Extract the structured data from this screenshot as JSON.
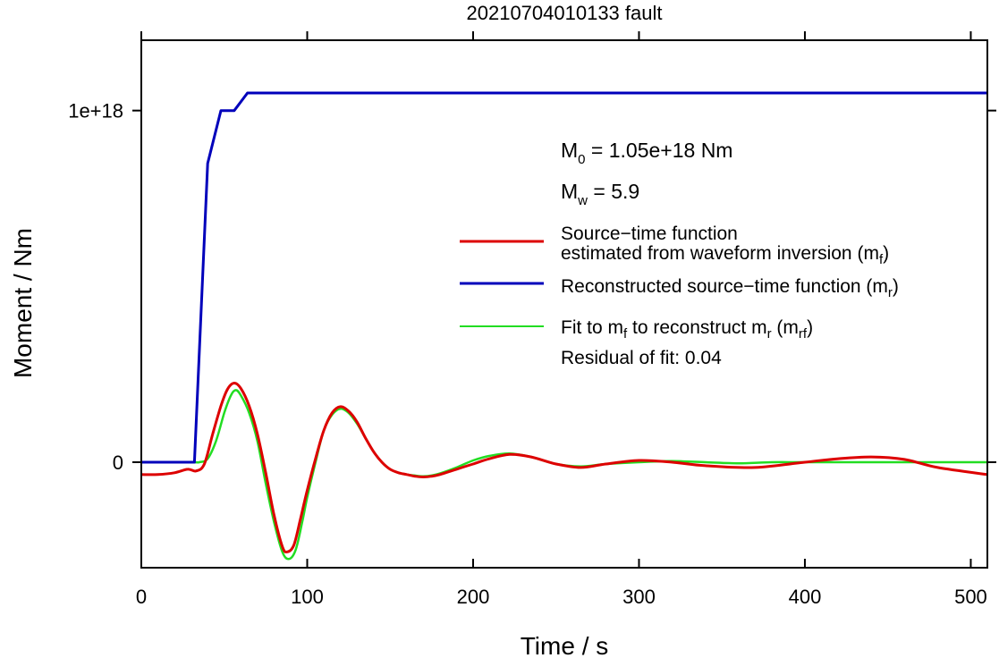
{
  "chart_data": {
    "type": "line",
    "title": "20210704010133 fault",
    "xlabel": "Time / s",
    "ylabel": "Moment / Nm",
    "xlim": [
      0,
      510
    ],
    "ylim": [
      -3e+17,
      1.2e+18
    ],
    "x_ticks": [
      0,
      100,
      200,
      300,
      400,
      500
    ],
    "x_tick_labels": [
      "0",
      "100",
      "200",
      "300",
      "400",
      "500"
    ],
    "y_ticks": [
      0,
      1e+18
    ],
    "y_tick_labels": [
      "0",
      "1e+18"
    ],
    "grid": false,
    "legend_position": "right",
    "annotations": {
      "m0": {
        "base": "M",
        "sub": "0",
        "text": " = 1.05e+18 Nm"
      },
      "mw": {
        "base": "M",
        "sub": "w",
        "text": " = 5.9"
      },
      "residual": "Residual of fit: 0.04"
    },
    "legend": [
      {
        "color": "#dd0000",
        "line1": "Source−time function",
        "line2": "estimated from waveform inversion (m",
        "line2_sub": "f",
        "line2_end": ")"
      },
      {
        "color": "#0000bb",
        "line1": "Reconstructed source−time function (m",
        "line1_sub": "r",
        "line1_end": ")"
      },
      {
        "color": "#22dd22",
        "line1a": "Fit to m",
        "line1a_sub": "f",
        "line1b": " to reconstruct m",
        "line1b_sub": "r",
        "line1c": " (m",
        "line1c_sub": "rf",
        "line1_end": ")"
      }
    ],
    "series": [
      {
        "key": "mr",
        "color": "#0000bb",
        "x": [
          0,
          32,
          40,
          48,
          56,
          64,
          70,
          100,
          200,
          300,
          400,
          510
        ],
        "y": [
          0,
          0,
          8.5e+17,
          1e+18,
          1e+18,
          1.05e+18,
          1.05e+18,
          1.05e+18,
          1.05e+18,
          1.05e+18,
          1.05e+18,
          1.05e+18
        ]
      },
      {
        "key": "mf",
        "color": "#dd0000",
        "x": [
          0,
          10,
          20,
          28,
          33,
          38,
          43,
          48,
          52,
          56,
          60,
          65,
          70,
          75,
          80,
          85,
          88,
          92,
          96,
          100,
          105,
          110,
          115,
          120,
          125,
          130,
          135,
          140,
          145,
          150,
          155,
          160,
          165,
          170,
          175,
          180,
          190,
          200,
          210,
          222,
          235,
          250,
          265,
          280,
          300,
          320,
          340,
          370,
          400,
          420,
          440,
          460,
          480,
          510
        ],
        "y": [
          -3.5e+16,
          -3.5e+16,
          -3e+16,
          -2e+16,
          -2.5e+16,
          -5000000000000000.0,
          8e+16,
          1.6e+17,
          2.08e+17,
          2.25e+17,
          2.1e+17,
          1.6e+17,
          8e+16,
          -3e+16,
          -1.5e+17,
          -2.4e+17,
          -2.55e+17,
          -2.35e+17,
          -1.6e+17,
          -8e+16,
          1e+16,
          9e+16,
          1.4e+17,
          1.58e+17,
          1.45e+17,
          1.15e+17,
          7e+16,
          3e+16,
          0,
          -2e+16,
          -3e+16,
          -3.5e+16,
          -4e+16,
          -4.2e+16,
          -4e+16,
          -3.5e+16,
          -2e+16,
          -5000000000000000.0,
          1e+16,
          2.2e+16,
          1.5e+16,
          -5000000000000000.0,
          -1.5e+16,
          -5000000000000000.0,
          5000000000000000.0,
          0,
          -1e+16,
          -1.5e+16,
          0,
          1e+16,
          1.5e+16,
          8000000000000000.0,
          -1.5e+16,
          -3.5e+16
        ]
      },
      {
        "key": "mrf",
        "color": "#22dd22",
        "x": [
          0,
          30,
          35,
          40,
          45,
          50,
          54,
          57,
          60,
          65,
          70,
          75,
          80,
          85,
          89,
          93,
          97,
          100,
          105,
          110,
          115,
          120,
          125,
          130,
          135,
          140,
          145,
          150,
          155,
          160,
          165,
          170,
          175,
          180,
          190,
          200,
          210,
          222,
          235,
          250,
          265,
          280,
          300,
          320,
          340,
          360,
          380,
          400,
          450,
          510
        ],
        "y": [
          0,
          0,
          0,
          1e+16,
          6e+16,
          1.4e+17,
          1.9e+17,
          2.05e+17,
          1.9e+17,
          1.4e+17,
          6e+16,
          -6e+16,
          -1.7e+17,
          -2.55e+17,
          -2.75e+17,
          -2.5e+17,
          -1.7e+17,
          -1e+17,
          0,
          9e+16,
          1.35e+17,
          1.52e+17,
          1.4e+17,
          1.1e+17,
          7e+16,
          3e+16,
          0,
          -2e+16,
          -3e+16,
          -3.5e+16,
          -3.8e+16,
          -4e+16,
          -3.8e+16,
          -3.2e+16,
          -1.5e+16,
          5000000000000000.0,
          1.8e+16,
          2.5e+16,
          1.5e+16,
          -5000000000000000.0,
          -1.2e+16,
          -5000000000000000.0,
          0,
          3000000000000000.0,
          0,
          -3000000000000000.0,
          0,
          0,
          0,
          0
        ]
      }
    ]
  }
}
